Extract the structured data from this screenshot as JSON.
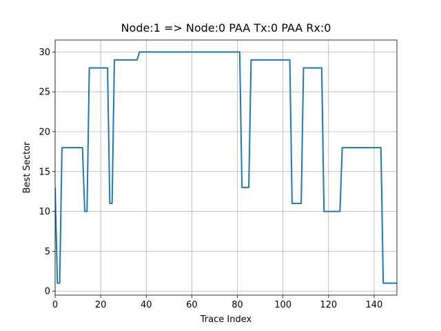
{
  "chart_data": {
    "type": "line",
    "title": "Node:1 => Node:0 PAA Tx:0 PAA Rx:0",
    "xlabel": "Trace Index",
    "ylabel": "Best Sector",
    "xlim": [
      0,
      150
    ],
    "ylim": [
      -0.5,
      31.5
    ],
    "x_ticks": [
      0,
      20,
      40,
      60,
      80,
      100,
      120,
      140
    ],
    "y_ticks": [
      0,
      5,
      10,
      15,
      20,
      25,
      30
    ],
    "x_tick_labels": [
      "0",
      "20",
      "40",
      "60",
      "80",
      "100",
      "120",
      "140"
    ],
    "y_tick_labels": [
      "0",
      "5",
      "10",
      "15",
      "20",
      "25",
      "30"
    ],
    "grid": true,
    "series": [
      {
        "color": "#1f77b4",
        "x": [
          0,
          1,
          2,
          3,
          12,
          13,
          14,
          15,
          23,
          24,
          25,
          26,
          36,
          37,
          81,
          82,
          85,
          86,
          103,
          104,
          108,
          109,
          117,
          118,
          125,
          126,
          143,
          144,
          150
        ],
        "y": [
          13,
          1,
          1,
          18,
          18,
          10,
          10,
          28,
          28,
          11,
          11,
          29,
          29,
          30,
          30,
          13,
          13,
          29,
          29,
          11,
          11,
          28,
          28,
          10,
          10,
          18,
          18,
          1,
          1
        ]
      }
    ]
  }
}
